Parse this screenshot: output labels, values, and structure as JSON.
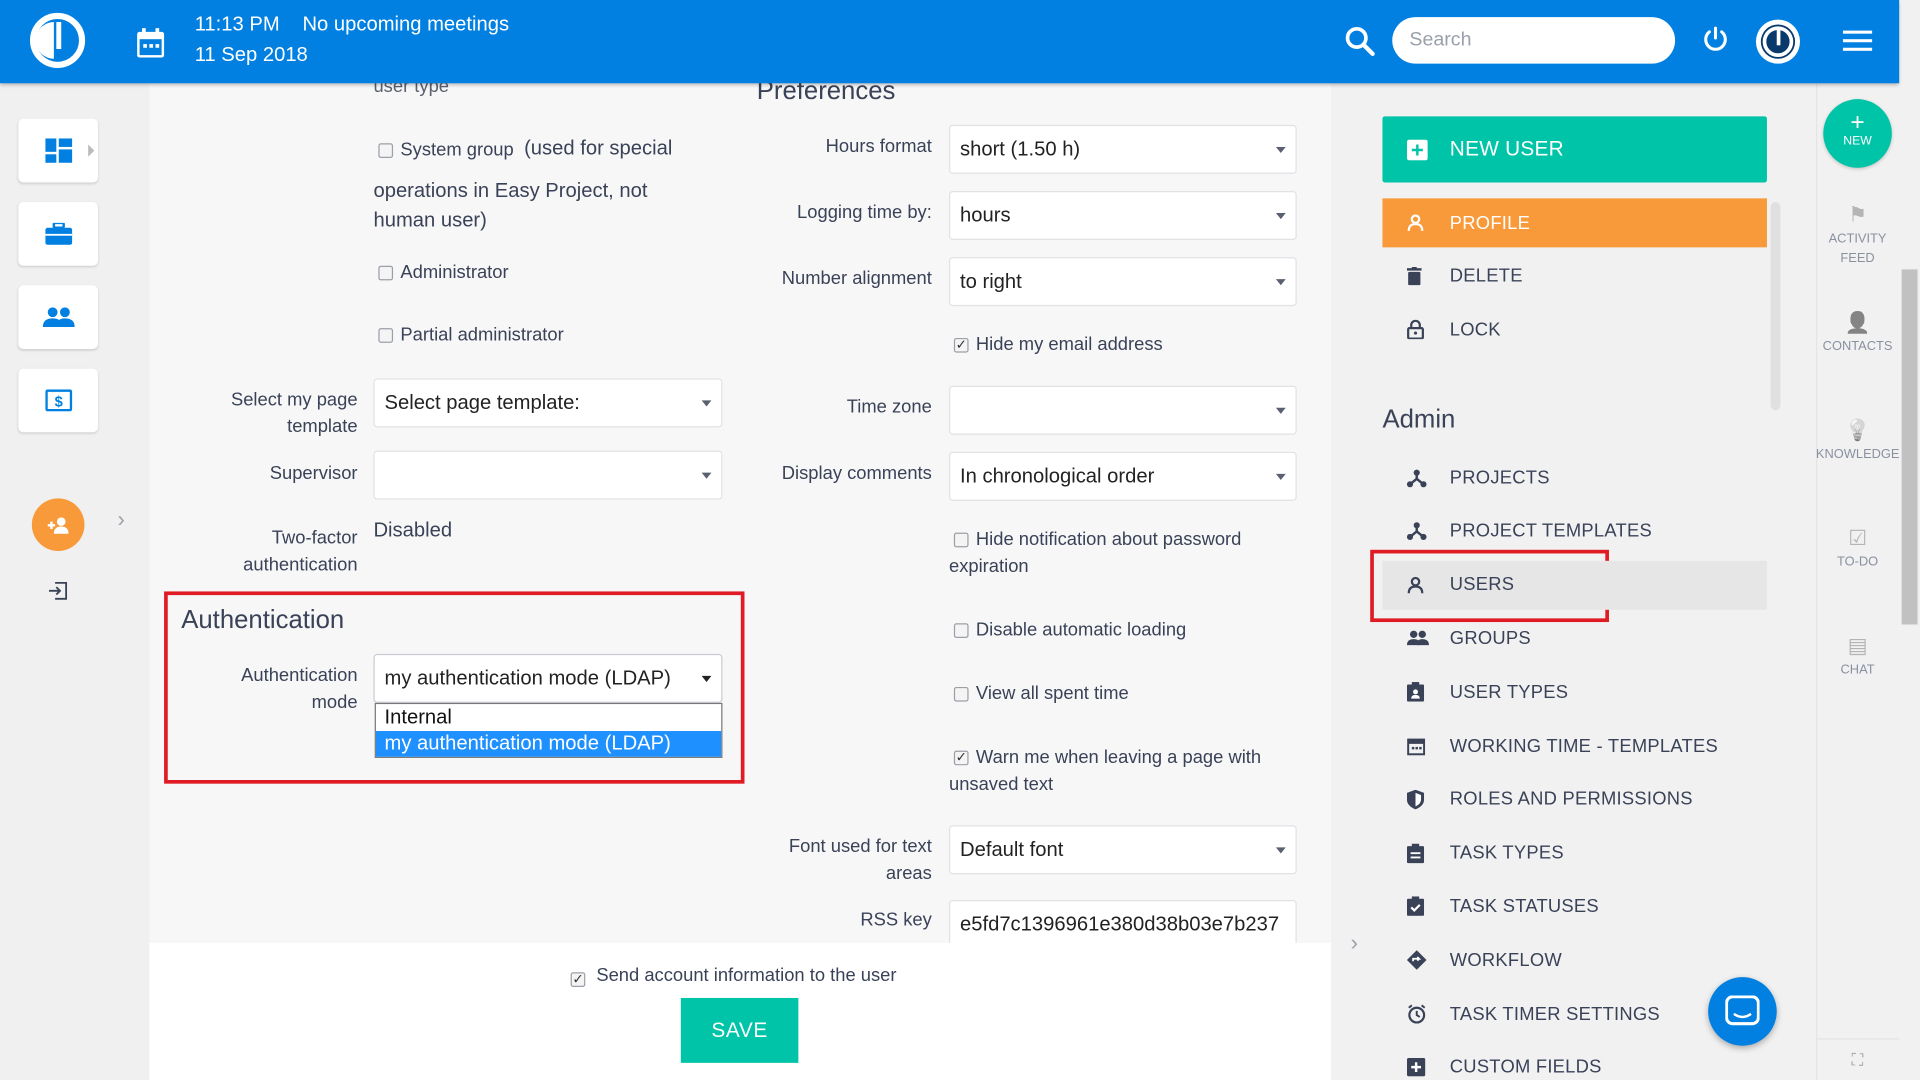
{
  "header": {
    "time": "11:13 PM",
    "meetings": "No upcoming meetings",
    "date": "11 Sep 2018",
    "search_placeholder": "Search"
  },
  "left_form": {
    "user_type_label": "user type",
    "system_group": {
      "label": "System group",
      "note": "(used for special",
      "note2": "operations in Easy Project, not",
      "note3": "human user)",
      "checked": false
    },
    "administrator": {
      "label": "Administrator",
      "checked": false
    },
    "partial_admin": {
      "label": "Partial administrator",
      "checked": false
    },
    "page_template": {
      "label1": "Select my page",
      "label2": "template",
      "value": "Select page template:"
    },
    "supervisor": {
      "label": "Supervisor",
      "value": ""
    },
    "two_factor": {
      "label1": "Two-factor",
      "label2": "authentication",
      "value": "Disabled"
    }
  },
  "authentication": {
    "title": "Authentication",
    "label1": "Authentication",
    "label2": "mode",
    "value": "my authentication mode (LDAP)",
    "options": [
      "Internal",
      "my authentication mode (LDAP)"
    ],
    "selected_index": 1
  },
  "preferences": {
    "title": "Preferences",
    "hours_format": {
      "label": "Hours format",
      "value": "short (1.50 h)"
    },
    "logging_time": {
      "label": "Logging time by:",
      "value": "hours"
    },
    "number_alignment": {
      "label": "Number alignment",
      "value": "to right"
    },
    "hide_email": {
      "label": "Hide my email address",
      "checked": true
    },
    "time_zone": {
      "label": "Time zone",
      "value": ""
    },
    "display_comments": {
      "label": "Display comments",
      "value": "In chronological order"
    },
    "hide_pw_notif": {
      "label1": "Hide notification about password",
      "label2": "expiration",
      "checked": false
    },
    "disable_loading": {
      "label": "Disable automatic loading",
      "checked": false
    },
    "view_spent": {
      "label": "View all spent time",
      "checked": false
    },
    "warn_leaving": {
      "label1": "Warn me when leaving a page with",
      "label2": "unsaved text",
      "checked": true
    },
    "font": {
      "label1": "Font used for text",
      "label2": "areas",
      "value": "Default font"
    },
    "rss": {
      "label": "RSS key",
      "value": "e5fd7c1396961e380d38b03e7b237"
    }
  },
  "footer": {
    "send_info": {
      "label": "Send account information to the user",
      "checked": true
    },
    "save": "SAVE"
  },
  "right_panel": {
    "new_user": "NEW USER",
    "actions": [
      {
        "label": "PROFILE",
        "icon": "user-icon",
        "active": true
      },
      {
        "label": "DELETE",
        "icon": "trash-icon"
      },
      {
        "label": "LOCK",
        "icon": "lock-icon"
      }
    ],
    "admin_title": "Admin",
    "admin_items": [
      {
        "label": "PROJECTS",
        "icon": "projects-icon"
      },
      {
        "label": "PROJECT TEMPLATES",
        "icon": "projects-icon"
      },
      {
        "label": "USERS",
        "icon": "user-icon",
        "active": true
      },
      {
        "label": "GROUPS",
        "icon": "groups-icon"
      },
      {
        "label": "USER TYPES",
        "icon": "badge-icon"
      },
      {
        "label": "WORKING TIME - TEMPLATES",
        "icon": "calendar-icon"
      },
      {
        "label": "ROLES AND PERMISSIONS",
        "icon": "shield-icon"
      },
      {
        "label": "TASK TYPES",
        "icon": "clipboard-icon"
      },
      {
        "label": "TASK STATUSES",
        "icon": "clipboard-check-icon"
      },
      {
        "label": "WORKFLOW",
        "icon": "workflow-icon"
      },
      {
        "label": "TASK TIMER SETTINGS",
        "icon": "timer-icon"
      },
      {
        "label": "CUSTOM FIELDS",
        "icon": "plus-square-icon"
      }
    ]
  },
  "rail": {
    "new": "NEW",
    "items": [
      {
        "label1": "ACTIVITY",
        "label2": "FEED"
      },
      {
        "label1": "CONTACTS"
      },
      {
        "label1": "KNOWLEDGE"
      },
      {
        "label1": "TO-DO"
      },
      {
        "label1": "CHAT"
      }
    ]
  },
  "colors": {
    "header": "#0180e1",
    "new_user": "#00c4a7",
    "profile": "#f99a3a",
    "save": "#00c4a7",
    "highlight": "#e01b24",
    "selected_option": "#1e90ff"
  }
}
